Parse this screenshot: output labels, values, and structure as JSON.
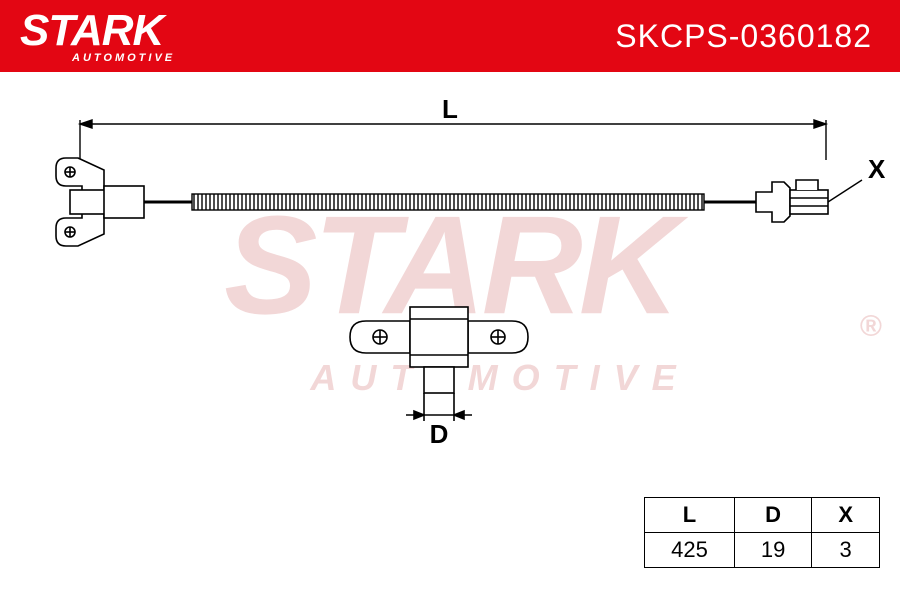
{
  "header": {
    "brand": "STARK",
    "brand_sub": "AUTOMOTIVE",
    "part_number": "SKCPS-0360182",
    "bg_color": "#e30613",
    "text_color": "#ffffff"
  },
  "watermark": {
    "text": "STARK",
    "sub": "AUTOMOTIVE",
    "color": "#f2d7d7",
    "registered": "®"
  },
  "diagram": {
    "labels": {
      "L": "L",
      "D": "D",
      "X": "X"
    },
    "stroke": "#000000",
    "stroke_width": 1.5
  },
  "table": {
    "columns": [
      "L",
      "D",
      "X"
    ],
    "values": [
      "425",
      "19",
      "3"
    ],
    "border_color": "#000000"
  }
}
